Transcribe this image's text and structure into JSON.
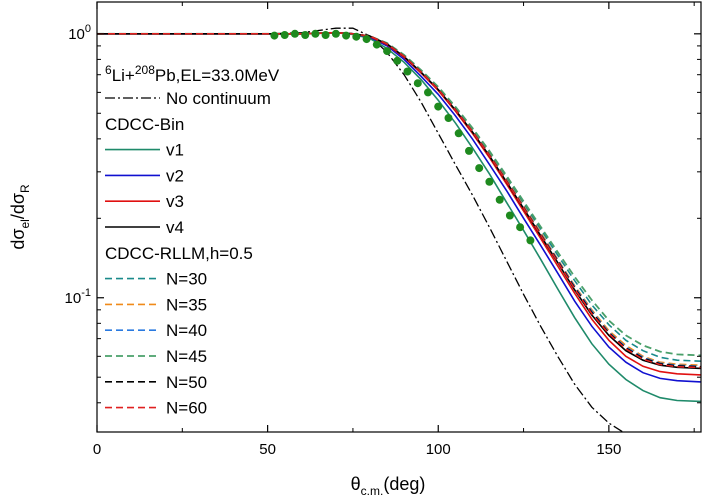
{
  "chart_data": {
    "type": "line",
    "title": "",
    "xlabel": {
      "main": "θ",
      "sub": "c.m.",
      "tail": "(deg)"
    },
    "ylabel": {
      "pre": "dσ",
      "sub1": "el",
      "mid": "/dσ",
      "sub2": "R"
    },
    "xlim": [
      0,
      177
    ],
    "ylim": [
      0.031,
      1.32
    ],
    "yscale": "log",
    "x_ticks": [
      0,
      50,
      100,
      150
    ],
    "x_tick_labels": [
      "0",
      "50",
      "100",
      "150"
    ],
    "y_ticks": [
      1.0,
      0.1
    ],
    "y_tick_labels": [
      "10^0",
      "10^-1"
    ],
    "reaction_label": {
      "sup1": "6",
      "t1": "Li+",
      "sup2": "208",
      "t2": "Pb,EL=33.0MeV"
    },
    "legend_location": "left",
    "legend": [
      {
        "label": "No continuum",
        "series": "no_continuum"
      },
      {
        "label": "CDCC-Bin",
        "header": true
      },
      {
        "label": "v1",
        "series": "v1"
      },
      {
        "label": "v2",
        "series": "v2"
      },
      {
        "label": "v3",
        "series": "v3"
      },
      {
        "label": "v4",
        "series": "v4"
      },
      {
        "label": "CDCC-RLLM,h=0.5",
        "header": true
      },
      {
        "label": "N=30",
        "series": "n30"
      },
      {
        "label": "N=35",
        "series": "n35"
      },
      {
        "label": "N=40",
        "series": "n40"
      },
      {
        "label": "N=45",
        "series": "n45"
      },
      {
        "label": "N=50",
        "series": "n50"
      },
      {
        "label": "N=60",
        "series": "n60"
      }
    ],
    "series": [
      {
        "id": "no_continuum",
        "name": "No continuum",
        "color": "#000000",
        "dash": "10,3,2,3",
        "width": 1.3,
        "x": [
          0,
          50,
          60,
          70,
          75,
          80,
          85,
          90,
          95,
          100,
          105,
          110,
          115,
          120,
          125,
          130,
          135,
          140,
          145,
          150,
          155
        ],
        "y": [
          1.0,
          1.0,
          1.01,
          1.05,
          1.05,
          0.98,
          0.85,
          0.7,
          0.55,
          0.42,
          0.32,
          0.245,
          0.185,
          0.138,
          0.103,
          0.078,
          0.06,
          0.047,
          0.0385,
          0.0335,
          0.0305
        ]
      },
      {
        "id": "v1",
        "name": "v1",
        "color": "#1f8a6a",
        "dash": "",
        "width": 1.6,
        "x": [
          0,
          50,
          60,
          70,
          75,
          80,
          85,
          90,
          95,
          100,
          105,
          110,
          115,
          120,
          125,
          130,
          135,
          140,
          145,
          150,
          155,
          160,
          165,
          170,
          177
        ],
        "y": [
          1.0,
          1.0,
          1.0,
          1.01,
          0.995,
          0.96,
          0.88,
          0.78,
          0.67,
          0.56,
          0.46,
          0.37,
          0.295,
          0.23,
          0.18,
          0.14,
          0.108,
          0.084,
          0.067,
          0.056,
          0.049,
          0.0445,
          0.0418,
          0.0408,
          0.0405
        ]
      },
      {
        "id": "v2",
        "name": "v2",
        "color": "#1010d0",
        "dash": "",
        "width": 1.6,
        "x": [
          0,
          50,
          60,
          70,
          75,
          80,
          85,
          90,
          95,
          100,
          105,
          110,
          115,
          120,
          125,
          130,
          135,
          140,
          145,
          150,
          155,
          160,
          165,
          170,
          177
        ],
        "y": [
          1.0,
          1.0,
          1.0,
          1.01,
          1.0,
          0.97,
          0.9,
          0.8,
          0.69,
          0.59,
          0.49,
          0.4,
          0.32,
          0.255,
          0.2,
          0.158,
          0.124,
          0.097,
          0.078,
          0.065,
          0.057,
          0.052,
          0.0495,
          0.0485,
          0.048
        ]
      },
      {
        "id": "v3",
        "name": "v3",
        "color": "#e01010",
        "dash": "",
        "width": 1.6,
        "x": [
          0,
          50,
          60,
          70,
          75,
          80,
          85,
          90,
          95,
          100,
          105,
          110,
          115,
          120,
          125,
          130,
          135,
          140,
          145,
          150,
          155,
          160,
          165,
          170,
          177
        ],
        "y": [
          1.0,
          1.0,
          1.0,
          1.01,
          1.0,
          0.975,
          0.91,
          0.815,
          0.71,
          0.61,
          0.51,
          0.42,
          0.34,
          0.27,
          0.213,
          0.168,
          0.132,
          0.104,
          0.083,
          0.069,
          0.06,
          0.055,
          0.0525,
          0.0515,
          0.051
        ]
      },
      {
        "id": "v4",
        "name": "v4",
        "color": "#000000",
        "dash": "",
        "width": 1.6,
        "x": [
          0,
          50,
          60,
          70,
          75,
          80,
          85,
          90,
          95,
          100,
          105,
          110,
          115,
          120,
          125,
          130,
          135,
          140,
          145,
          150,
          155,
          160,
          165,
          170,
          177
        ],
        "y": [
          1.0,
          1.0,
          1.0,
          1.01,
          1.0,
          0.98,
          0.915,
          0.82,
          0.715,
          0.615,
          0.515,
          0.425,
          0.345,
          0.275,
          0.218,
          0.172,
          0.136,
          0.107,
          0.086,
          0.072,
          0.063,
          0.058,
          0.0555,
          0.0545,
          0.054
        ]
      },
      {
        "id": "n30",
        "name": "N=30",
        "color": "#1a8a8a",
        "dash": "7,4",
        "width": 1.6,
        "x": [
          0,
          50,
          60,
          70,
          75,
          80,
          85,
          90,
          95,
          100,
          105,
          110,
          115,
          120,
          125,
          130,
          135,
          140,
          145,
          150,
          155,
          160,
          165,
          170,
          177
        ],
        "y": [
          1.0,
          1.0,
          1.0,
          1.01,
          1.0,
          0.98,
          0.92,
          0.83,
          0.725,
          0.625,
          0.525,
          0.435,
          0.355,
          0.285,
          0.228,
          0.182,
          0.145,
          0.116,
          0.094,
          0.079,
          0.069,
          0.063,
          0.0595,
          0.058,
          0.0575
        ]
      },
      {
        "id": "n35",
        "name": "N=35",
        "color": "#f08a1a",
        "dash": "7,4",
        "width": 1.6,
        "x": [
          0,
          50,
          60,
          70,
          75,
          80,
          85,
          90,
          95,
          100,
          105,
          110,
          115,
          120,
          125,
          130,
          135,
          140,
          145,
          150,
          155,
          160,
          165,
          170,
          177
        ],
        "y": [
          1.0,
          1.0,
          1.0,
          1.01,
          1.0,
          0.98,
          0.918,
          0.825,
          0.72,
          0.62,
          0.52,
          0.43,
          0.35,
          0.28,
          0.223,
          0.177,
          0.14,
          0.111,
          0.09,
          0.075,
          0.066,
          0.06,
          0.057,
          0.056,
          0.0555
        ]
      },
      {
        "id": "n40",
        "name": "N=40",
        "color": "#2a7ae0",
        "dash": "7,4",
        "width": 1.6,
        "x": [
          0,
          50,
          60,
          70,
          75,
          80,
          85,
          90,
          95,
          100,
          105,
          110,
          115,
          120,
          125,
          130,
          135,
          140,
          145,
          150,
          155,
          160,
          165,
          170,
          177
        ],
        "y": [
          1.0,
          1.0,
          1.0,
          1.01,
          1.0,
          0.98,
          0.918,
          0.824,
          0.718,
          0.618,
          0.518,
          0.428,
          0.348,
          0.278,
          0.221,
          0.175,
          0.139,
          0.11,
          0.089,
          0.074,
          0.065,
          0.0595,
          0.0565,
          0.0555,
          0.055
        ]
      },
      {
        "id": "n45",
        "name": "N=45",
        "color": "#4aa06a",
        "dash": "7,4",
        "width": 1.8,
        "x": [
          0,
          50,
          60,
          70,
          75,
          80,
          85,
          90,
          95,
          100,
          105,
          110,
          115,
          120,
          125,
          130,
          135,
          140,
          145,
          150,
          155,
          160,
          165,
          170,
          177
        ],
        "y": [
          1.0,
          1.0,
          1.0,
          1.01,
          1.0,
          0.98,
          0.922,
          0.832,
          0.728,
          0.63,
          0.53,
          0.44,
          0.36,
          0.29,
          0.232,
          0.186,
          0.149,
          0.12,
          0.098,
          0.082,
          0.072,
          0.066,
          0.0625,
          0.061,
          0.0605
        ]
      },
      {
        "id": "n50",
        "name": "N=50",
        "color": "#000000",
        "dash": "7,4",
        "width": 1.6,
        "x": [
          0,
          50,
          60,
          70,
          75,
          80,
          85,
          90,
          95,
          100,
          105,
          110,
          115,
          120,
          125,
          130,
          135,
          140,
          145,
          150,
          155,
          160,
          165,
          170,
          177
        ],
        "y": [
          1.0,
          1.0,
          1.0,
          1.01,
          1.0,
          0.98,
          0.917,
          0.823,
          0.717,
          0.617,
          0.517,
          0.427,
          0.347,
          0.277,
          0.22,
          0.174,
          0.138,
          0.109,
          0.088,
          0.0735,
          0.0645,
          0.059,
          0.0562,
          0.0552,
          0.0548
        ]
      },
      {
        "id": "n60",
        "name": "N=60",
        "color": "#e02020",
        "dash": "7,4",
        "width": 1.6,
        "x": [
          0,
          50,
          60,
          70,
          75,
          80,
          85,
          90,
          95,
          100,
          105,
          110,
          115,
          120,
          125,
          130,
          135,
          140,
          145,
          150,
          155,
          160,
          165,
          170,
          177
        ],
        "y": [
          1.0,
          1.0,
          1.0,
          1.01,
          1.0,
          0.98,
          0.916,
          0.822,
          0.716,
          0.616,
          0.516,
          0.426,
          0.346,
          0.276,
          0.219,
          0.173,
          0.137,
          0.108,
          0.087,
          0.073,
          0.064,
          0.0585,
          0.0558,
          0.0548,
          0.0544
        ]
      }
    ],
    "experimental_data": {
      "name": "data",
      "color": "#1e8a1e",
      "x": [
        52,
        55,
        58,
        61,
        64,
        67,
        70,
        73,
        76,
        79,
        82,
        85,
        88,
        91,
        94,
        97,
        100,
        103,
        106,
        109,
        112,
        115,
        118,
        121,
        124,
        127
      ],
      "y": [
        0.985,
        0.99,
        1.0,
        0.99,
        1.0,
        0.99,
        1.0,
        0.985,
        0.975,
        0.955,
        0.91,
        0.86,
        0.79,
        0.72,
        0.65,
        0.6,
        0.53,
        0.48,
        0.42,
        0.36,
        0.31,
        0.275,
        0.235,
        0.205,
        0.185,
        0.165
      ]
    }
  }
}
